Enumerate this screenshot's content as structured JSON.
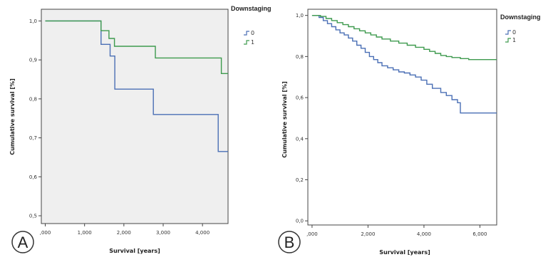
{
  "chart_data": [
    {
      "type": "line",
      "panel_label": "A",
      "title": "",
      "xlabel": "Survival [years]",
      "ylabel": "Cumulative survival [%]",
      "xlim": [
        -0.1,
        4.65
      ],
      "ylim": [
        0.48,
        1.03
      ],
      "x_ticks": [
        0,
        1,
        2,
        3,
        4
      ],
      "x_tick_labels": [
        ",000",
        "1,000",
        "2,000",
        "3,000",
        "4,000"
      ],
      "y_ticks": [
        0.5,
        0.6,
        0.7,
        0.8,
        0.9,
        1.0
      ],
      "y_tick_labels": [
        "0,5",
        "0,6",
        "0,7",
        "0,8",
        "0,9",
        "1,0"
      ],
      "legend_title": "Downstaging",
      "legend_position": "top-right-outside",
      "grid": false,
      "series": [
        {
          "name": "0",
          "color": "#4a6fb5",
          "step": true,
          "x": [
            0,
            1.42,
            1.42,
            1.65,
            1.65,
            1.77,
            1.77,
            2.75,
            2.75,
            4.4,
            4.4,
            4.65
          ],
          "y": [
            1.0,
            1.0,
            0.94,
            0.94,
            0.91,
            0.91,
            0.825,
            0.825,
            0.76,
            0.76,
            0.665,
            0.665
          ]
        },
        {
          "name": "1",
          "color": "#3e9a4e",
          "step": true,
          "x": [
            0,
            1.42,
            1.42,
            1.62,
            1.62,
            1.76,
            1.76,
            2.8,
            2.8,
            4.48,
            4.48,
            4.65
          ],
          "y": [
            1.0,
            1.0,
            0.975,
            0.975,
            0.955,
            0.955,
            0.935,
            0.935,
            0.905,
            0.905,
            0.865,
            0.865
          ]
        }
      ]
    },
    {
      "type": "line",
      "panel_label": "B",
      "title": "",
      "xlabel": "Survival [years]",
      "ylabel": "Cumulative survival [%]",
      "xlim": [
        -0.15,
        6.6
      ],
      "ylim": [
        -0.02,
        1.03
      ],
      "x_ticks": [
        0,
        2,
        4,
        6
      ],
      "x_tick_labels": [
        ",000",
        "2,000",
        "4,000",
        "6,000"
      ],
      "y_ticks": [
        0.0,
        0.2,
        0.4,
        0.6,
        0.8,
        1.0
      ],
      "y_tick_labels": [
        "0,0",
        "0,2",
        "0,4",
        "0,6",
        "0,8",
        "1,0"
      ],
      "legend_title": "Downstaging",
      "legend_position": "top-right-outside",
      "grid": false,
      "series": [
        {
          "name": "0",
          "color": "#4a6fb5",
          "step": true,
          "x": [
            0,
            0.25,
            0.4,
            0.55,
            0.7,
            0.85,
            1.0,
            1.15,
            1.3,
            1.45,
            1.6,
            1.75,
            1.9,
            2.05,
            2.2,
            2.35,
            2.5,
            2.7,
            2.9,
            3.1,
            3.3,
            3.5,
            3.7,
            3.9,
            4.1,
            4.3,
            4.6,
            4.8,
            5.0,
            5.2,
            5.3,
            6.6
          ],
          "y": [
            1.0,
            0.99,
            0.975,
            0.96,
            0.945,
            0.93,
            0.915,
            0.905,
            0.89,
            0.875,
            0.855,
            0.84,
            0.82,
            0.8,
            0.785,
            0.77,
            0.755,
            0.745,
            0.735,
            0.725,
            0.72,
            0.71,
            0.7,
            0.685,
            0.665,
            0.645,
            0.625,
            0.61,
            0.59,
            0.575,
            0.525,
            0.525
          ]
        },
        {
          "name": "1",
          "color": "#3e9a4e",
          "step": true,
          "x": [
            0,
            0.3,
            0.5,
            0.7,
            0.9,
            1.1,
            1.3,
            1.5,
            1.7,
            1.9,
            2.1,
            2.3,
            2.5,
            2.8,
            3.1,
            3.4,
            3.7,
            4.0,
            4.2,
            4.4,
            4.6,
            4.8,
            5.0,
            5.3,
            5.6,
            6.6
          ],
          "y": [
            1.0,
            0.995,
            0.985,
            0.975,
            0.965,
            0.955,
            0.945,
            0.935,
            0.925,
            0.915,
            0.905,
            0.895,
            0.885,
            0.875,
            0.865,
            0.855,
            0.845,
            0.835,
            0.825,
            0.815,
            0.805,
            0.8,
            0.795,
            0.79,
            0.785,
            0.785
          ]
        }
      ]
    }
  ]
}
